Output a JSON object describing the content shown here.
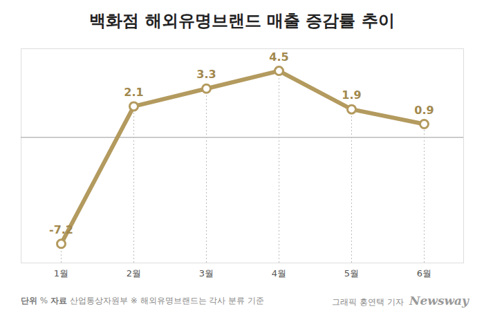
{
  "chart_data": {
    "type": "line",
    "title": "백화점 해외유명브랜드 매출 증감률 추이",
    "categories": [
      "1월",
      "2월",
      "3월",
      "4월",
      "5월",
      "6월"
    ],
    "values": [
      -7.2,
      2.1,
      3.3,
      4.5,
      1.9,
      0.9
    ],
    "color": "#b39a5e",
    "marker": "circle",
    "ylim": [
      -8.5,
      6
    ],
    "yticks": [
      0
    ],
    "grid": true,
    "tick_labels": "x",
    "data_labels": true,
    "unit_label": "단위",
    "unit": "%",
    "source_label": "자료",
    "source": "산업통상자원부",
    "note": "※ 해외유명브랜드는 각사 분류 기준",
    "credit": "그래픽 홍연택 기자",
    "brand": "Newsway"
  }
}
